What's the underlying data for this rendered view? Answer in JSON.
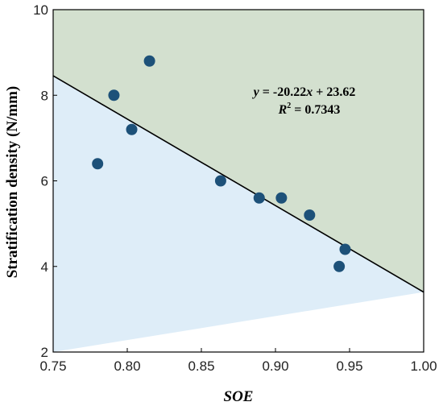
{
  "chart_data": {
    "type": "scatter",
    "xlabel": "SOE",
    "ylabel": "Stratification density (N/mm)",
    "xlim": [
      0.75,
      1.0
    ],
    "ylim": [
      2,
      10
    ],
    "xticks": [
      "0.75",
      "0.80",
      "0.85",
      "0.90",
      "0.95",
      "1.00"
    ],
    "yticks": [
      "2",
      "4",
      "6",
      "8",
      "10"
    ],
    "grid": false,
    "series": [
      {
        "points": [
          {
            "x": 0.78,
            "y": 6.4
          },
          {
            "x": 0.791,
            "y": 8.0
          },
          {
            "x": 0.803,
            "y": 7.2
          },
          {
            "x": 0.815,
            "y": 8.8
          },
          {
            "x": 0.863,
            "y": 6.0
          },
          {
            "x": 0.889,
            "y": 5.6
          },
          {
            "x": 0.904,
            "y": 5.6
          },
          {
            "x": 0.923,
            "y": 5.2
          },
          {
            "x": 0.943,
            "y": 4.0
          },
          {
            "x": 0.947,
            "y": 4.4
          }
        ]
      }
    ],
    "fit": {
      "slope": -20.22,
      "intercept": 23.62,
      "equation_y": "y",
      "equation_rest": " = -20.22",
      "equation_x": "x",
      "equation_tail": " + 23.62",
      "r2_label": "R",
      "r2_sup": "2",
      "r2_value": " = 0.7343"
    },
    "colors": {
      "above_line": "#d3e0cf",
      "below_line": "#deedf8",
      "points": "#1d5179",
      "line": "#000000"
    }
  }
}
